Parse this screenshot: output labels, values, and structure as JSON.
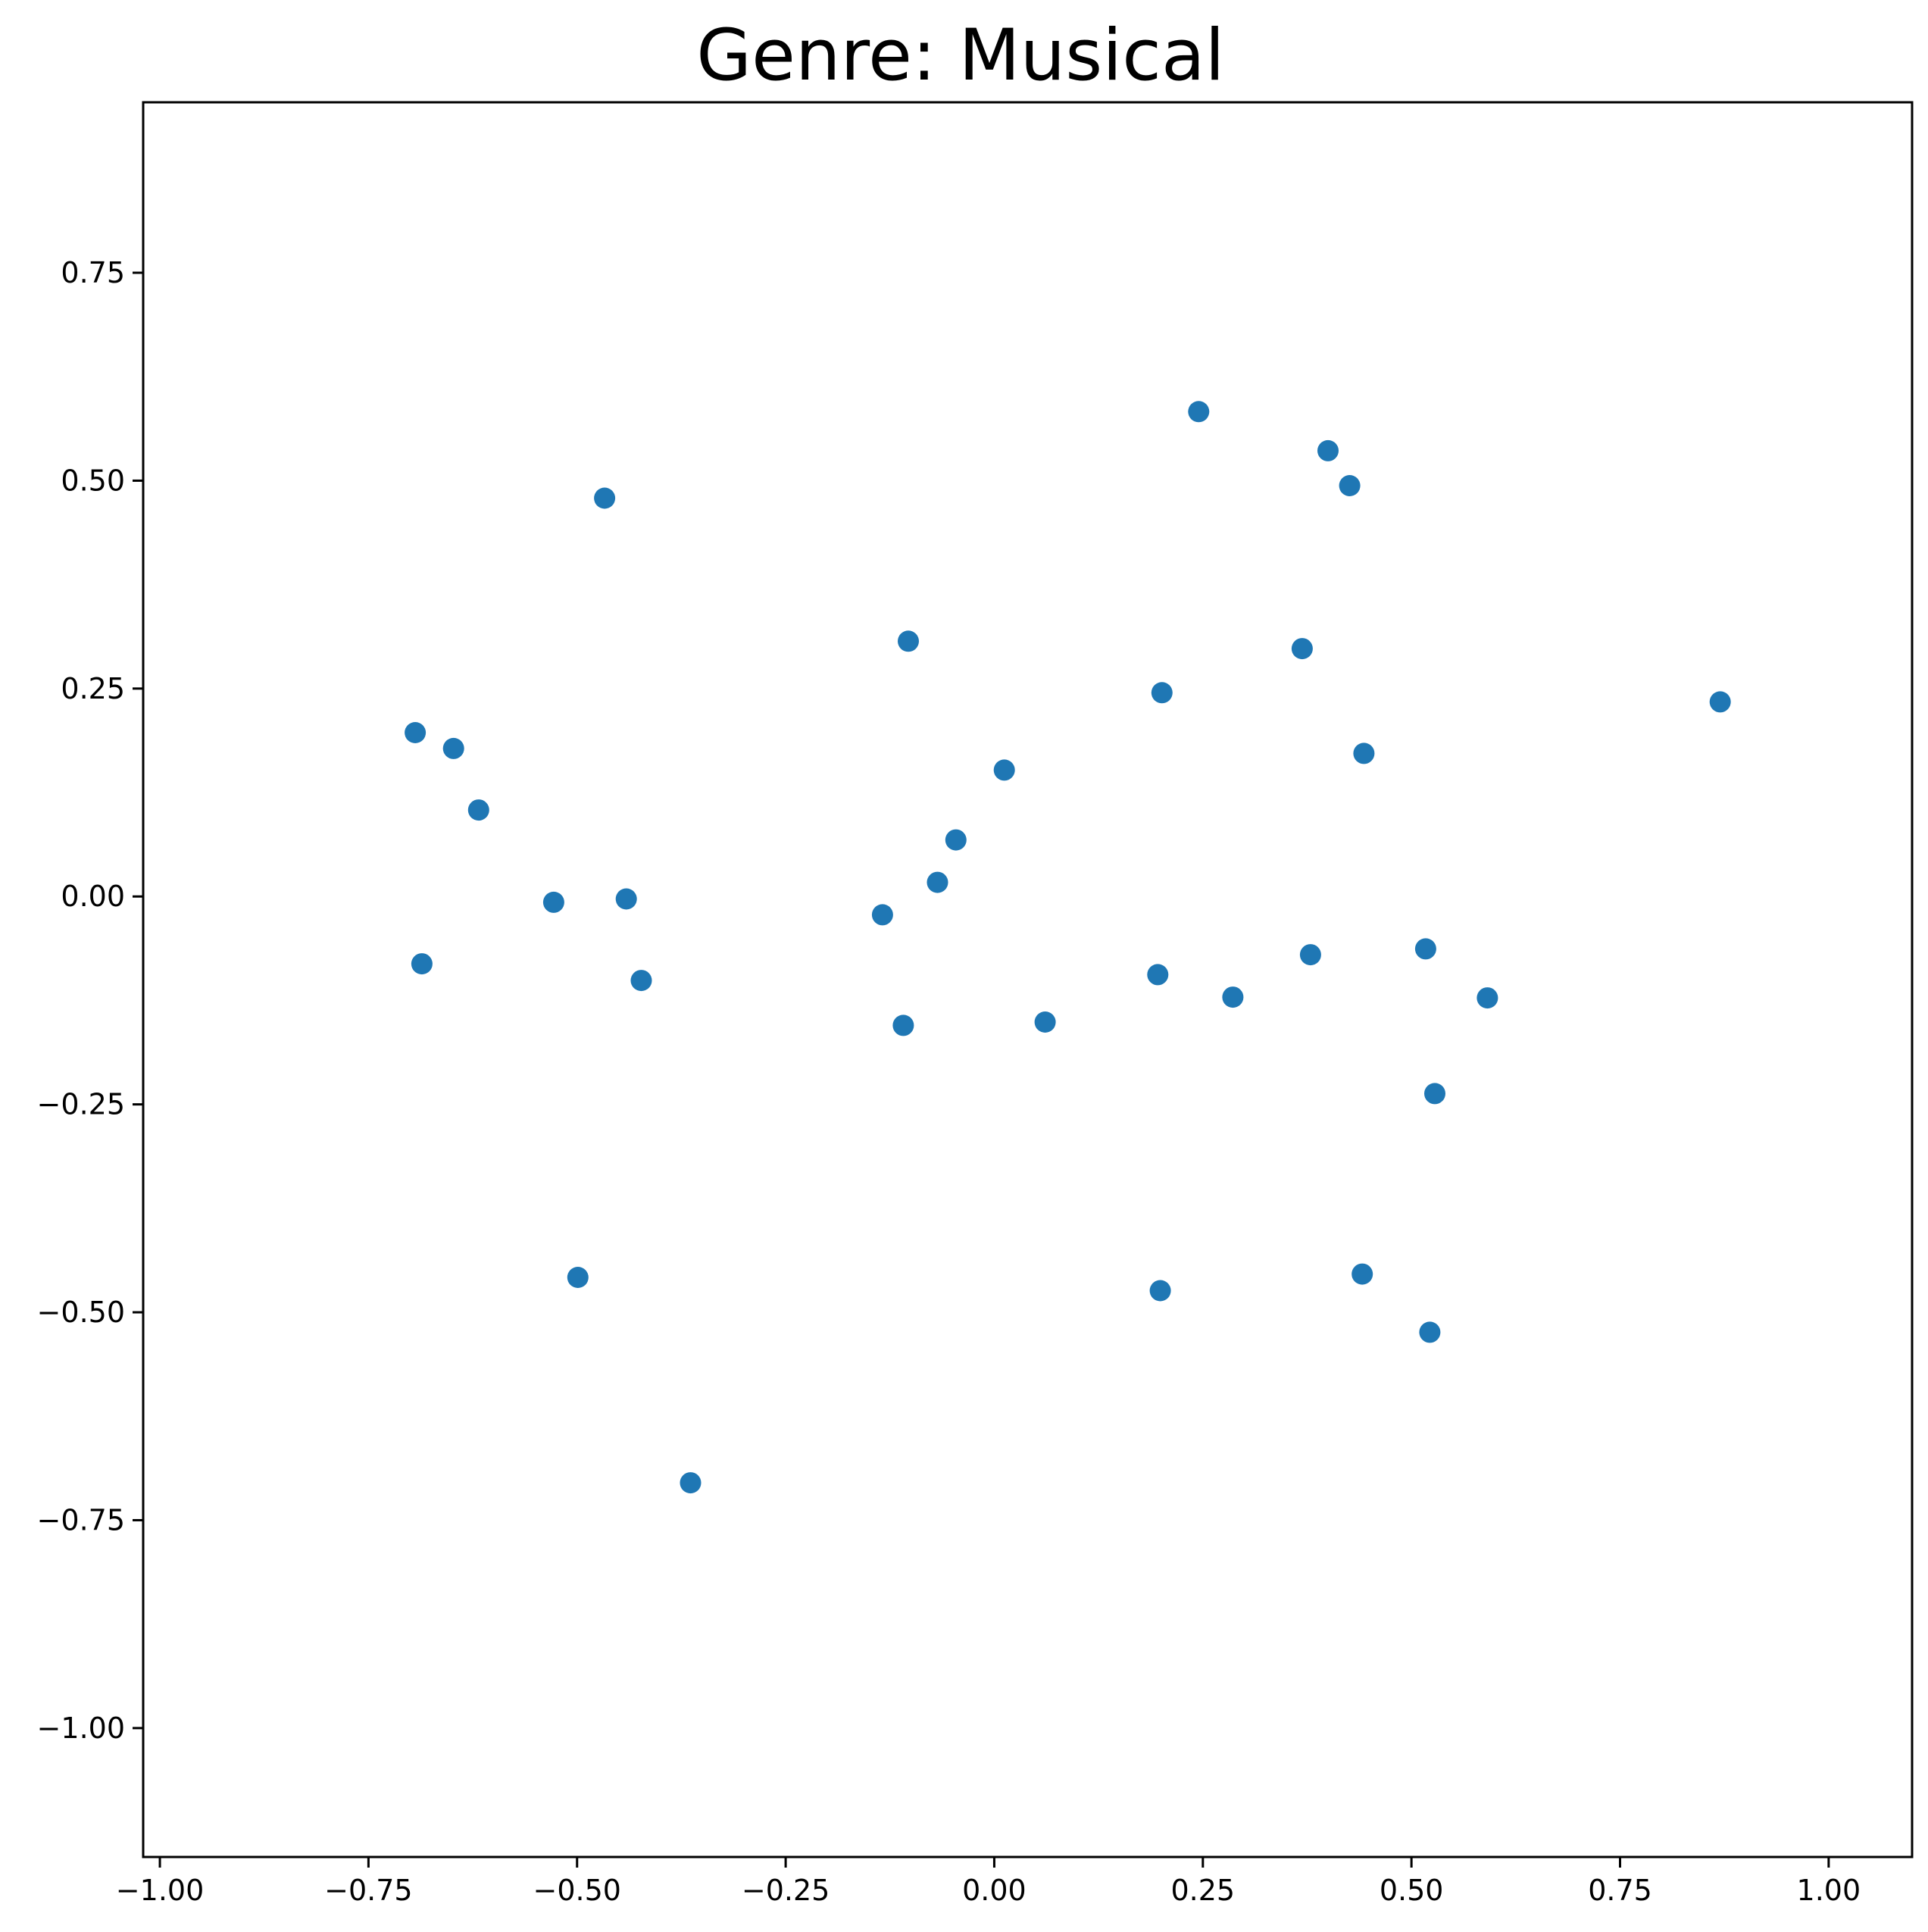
{
  "chart_data": {
    "type": "scatter",
    "title": "Genre: Musical",
    "xlabel": "",
    "ylabel": "",
    "xlim": [
      -1.02,
      1.1
    ],
    "ylim": [
      -1.155,
      0.955
    ],
    "xticks": [
      -1.0,
      -0.75,
      -0.5,
      -0.25,
      0.0,
      0.25,
      0.5,
      0.75,
      1.0
    ],
    "xtick_labels": [
      "−1.00",
      "−0.75",
      "−0.50",
      "−0.25",
      "0.00",
      "0.25",
      "0.50",
      "0.75",
      "1.00"
    ],
    "yticks": [
      -1.0,
      -0.75,
      -0.5,
      -0.25,
      0.0,
      0.25,
      0.5,
      0.75
    ],
    "ytick_labels": [
      "−1.00",
      "−0.75",
      "−0.50",
      "−0.25",
      "0.00",
      "0.25",
      "0.50",
      "0.75"
    ],
    "grid": false,
    "legend": "none",
    "marker_color": "#1f77b4",
    "series": [
      {
        "points": [
          [
            0.245,
            0.583
          ],
          [
            0.4,
            0.536
          ],
          [
            0.426,
            0.494
          ],
          [
            -0.467,
            0.479
          ],
          [
            -0.103,
            0.307
          ],
          [
            0.369,
            0.298
          ],
          [
            0.201,
            0.245
          ],
          [
            0.87,
            0.234
          ],
          [
            0.443,
            0.172
          ],
          [
            0.012,
            0.152
          ],
          [
            -0.694,
            0.197
          ],
          [
            -0.648,
            0.178
          ],
          [
            -0.618,
            0.104
          ],
          [
            -0.046,
            0.068
          ],
          [
            -0.068,
            0.017
          ],
          [
            -0.528,
            -0.007
          ],
          [
            -0.441,
            -0.003
          ],
          [
            -0.134,
            -0.022
          ],
          [
            -0.686,
            -0.081
          ],
          [
            -0.423,
            -0.101
          ],
          [
            0.196,
            -0.094
          ],
          [
            0.379,
            -0.07
          ],
          [
            0.517,
            -0.063
          ],
          [
            0.286,
            -0.121
          ],
          [
            0.591,
            -0.122
          ],
          [
            -0.109,
            -0.155
          ],
          [
            0.061,
            -0.151
          ],
          [
            0.528,
            -0.237
          ],
          [
            -0.499,
            -0.458
          ],
          [
            0.199,
            -0.474
          ],
          [
            0.441,
            -0.454
          ],
          [
            0.522,
            -0.524
          ],
          [
            -0.364,
            -0.705
          ]
        ]
      }
    ]
  }
}
